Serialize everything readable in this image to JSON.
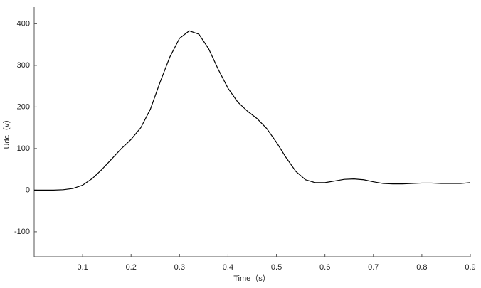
{
  "chart_data": {
    "type": "line",
    "xlabel": "Time（s）",
    "ylabel": "Udc（v）",
    "x": [
      0,
      0.02,
      0.04,
      0.06,
      0.08,
      0.1,
      0.12,
      0.14,
      0.16,
      0.18,
      0.2,
      0.22,
      0.24,
      0.26,
      0.28,
      0.3,
      0.32,
      0.34,
      0.36,
      0.38,
      0.4,
      0.42,
      0.44,
      0.46,
      0.48,
      0.5,
      0.52,
      0.54,
      0.56,
      0.58,
      0.6,
      0.62,
      0.64,
      0.66,
      0.68,
      0.7,
      0.72,
      0.74,
      0.76,
      0.78,
      0.8,
      0.82,
      0.84,
      0.86,
      0.88,
      0.9
    ],
    "values": [
      0,
      0,
      0,
      1,
      4,
      12,
      28,
      50,
      75,
      100,
      122,
      150,
      195,
      260,
      320,
      365,
      383,
      375,
      340,
      290,
      245,
      212,
      190,
      172,
      148,
      115,
      78,
      45,
      25,
      18,
      18,
      22,
      26,
      27,
      25,
      20,
      16,
      15,
      15,
      16,
      17,
      17,
      16,
      16,
      16,
      18
    ],
    "color": "#000000",
    "xlim": [
      0,
      0.9
    ],
    "xticks": [
      0.1,
      0.2,
      0.3,
      0.4,
      0.5,
      0.6,
      0.7,
      0.8,
      0.9
    ],
    "ylim": [
      -160,
      440
    ],
    "yticks": [
      -100,
      0,
      100,
      200,
      300,
      400
    ],
    "grid": false
  }
}
